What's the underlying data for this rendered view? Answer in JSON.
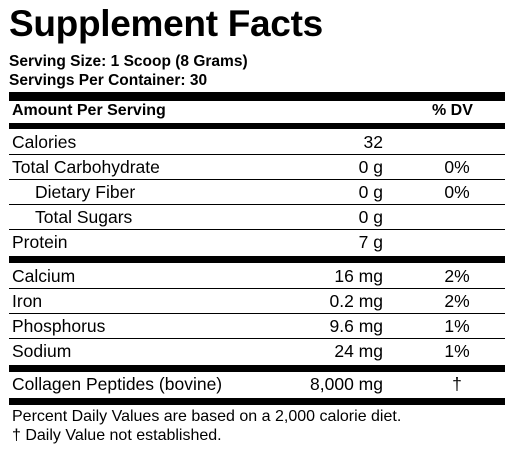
{
  "title": "Supplement Facts",
  "serving_size": "Serving Size: 1 Scoop (8 Grams)",
  "servings_per_container": "Servings Per Container: 30",
  "header": {
    "amount_label": "Amount Per Serving",
    "dv_label": "% DV"
  },
  "groups": [
    [
      {
        "name": "Calories",
        "amount": "32",
        "dv": "",
        "indent": false
      },
      {
        "name": "Total Carbohydrate",
        "amount": "0 g",
        "dv": "0%",
        "indent": false
      },
      {
        "name": "Dietary Fiber",
        "amount": "0 g",
        "dv": "0%",
        "indent": true
      },
      {
        "name": "Total Sugars",
        "amount": "0 g",
        "dv": "",
        "indent": true
      },
      {
        "name": "Protein",
        "amount": "7 g",
        "dv": "",
        "indent": false
      }
    ],
    [
      {
        "name": "Calcium",
        "amount": "16 mg",
        "dv": "2%",
        "indent": false
      },
      {
        "name": "Iron",
        "amount": "0.2 mg",
        "dv": "2%",
        "indent": false
      },
      {
        "name": "Phosphorus",
        "amount": "9.6 mg",
        "dv": "1%",
        "indent": false
      },
      {
        "name": "Sodium",
        "amount": "24 mg",
        "dv": "1%",
        "indent": false
      }
    ],
    [
      {
        "name": "Collagen Peptides (bovine)",
        "amount": "8,000 mg",
        "dv": "†",
        "indent": false
      }
    ]
  ],
  "footnotes": [
    "Percent Daily Values are based on a 2,000 calorie diet.",
    "† Daily Value not established."
  ]
}
